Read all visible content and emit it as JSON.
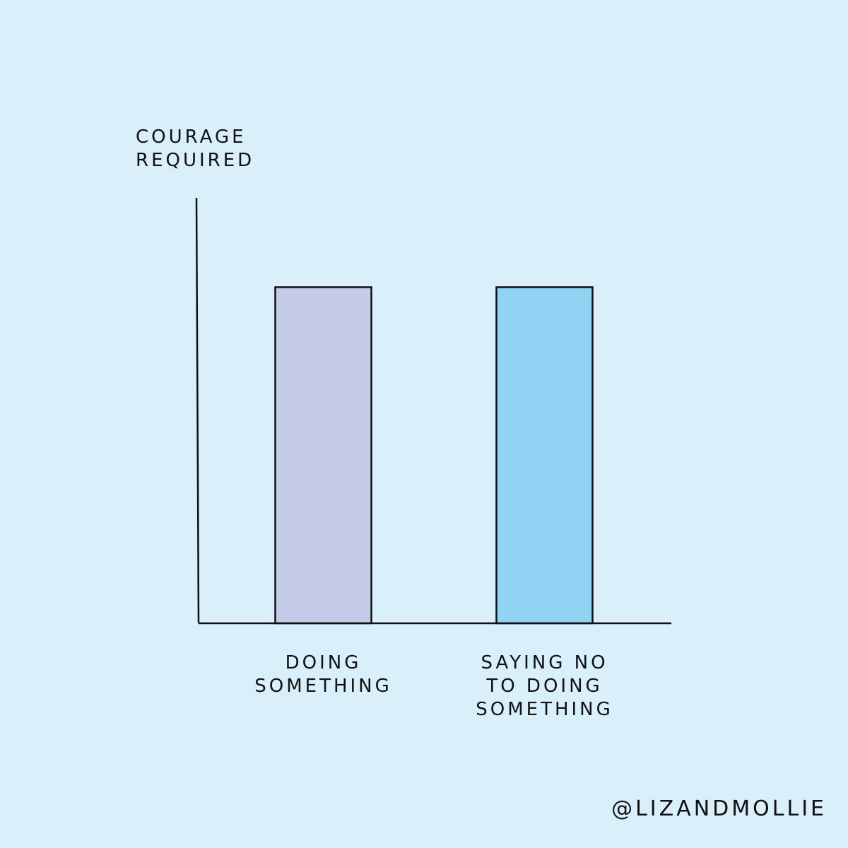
{
  "chart_data": {
    "type": "bar",
    "ylabel": "COURAGE\nREQUIRED",
    "categories": [
      "DOING\nSOMETHING",
      "SAYING NO\nTO DOING\nSOMETHING"
    ],
    "series": [
      {
        "name": null,
        "colors": [
          "#c5cce9",
          "#90d3f2"
        ],
        "values": [
          79,
          79
        ]
      }
    ],
    "ylim": [
      0,
      100
    ],
    "credit": "@LIZANDMOLLIE"
  }
}
